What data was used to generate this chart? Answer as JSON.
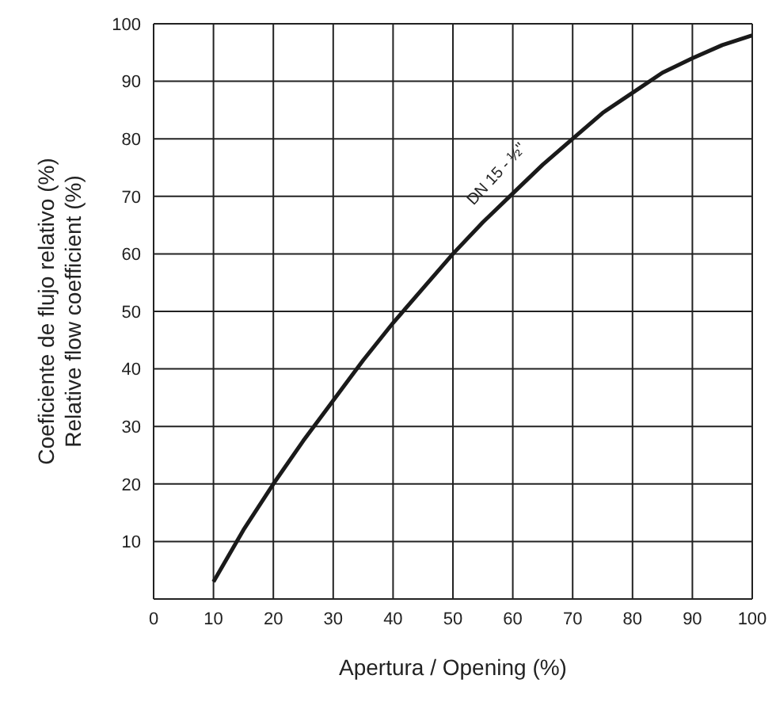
{
  "chart_data": {
    "type": "line",
    "xlabel": "Apertura / Opening (%)",
    "ylabel": "Coeficiente de flujo relativo (%)\nRelative flow coefficient (%)",
    "x": [
      10,
      15,
      20,
      25,
      30,
      35,
      40,
      45,
      50,
      55,
      60,
      65,
      70,
      75,
      80,
      85,
      90,
      95,
      100
    ],
    "series": [
      {
        "name": "DN 15 - ½\"",
        "color": "#1a1a1a",
        "values": [
          3,
          12,
          20,
          27.5,
          34.5,
          41.5,
          48,
          54,
          60,
          65.5,
          70.5,
          75.5,
          80,
          84.5,
          88,
          91.5,
          94,
          96.3,
          98
        ]
      }
    ],
    "xlim": [
      0,
      100
    ],
    "ylim": [
      0,
      100
    ],
    "xticks": [
      0,
      10,
      20,
      30,
      40,
      50,
      60,
      70,
      80,
      90,
      100
    ],
    "yticks": [
      {
        "value": 0,
        "label": null
      },
      10,
      20,
      30,
      40,
      50,
      60,
      70,
      80,
      90,
      100
    ],
    "grid": true,
    "legend": false,
    "marker": "none",
    "line_style": "solid"
  }
}
